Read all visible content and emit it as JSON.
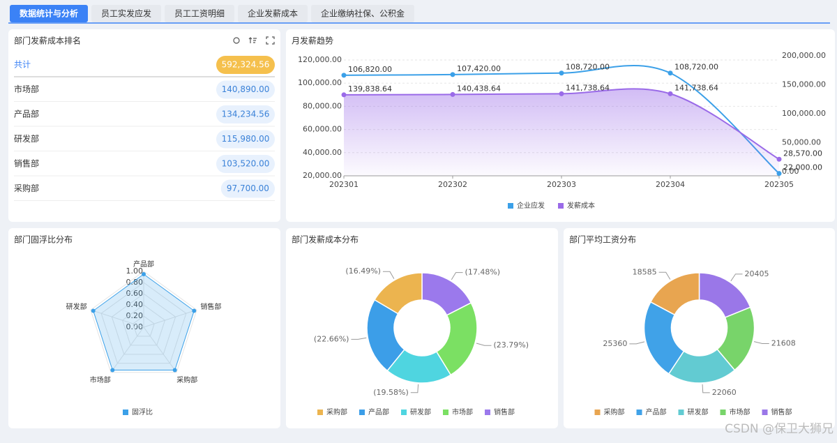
{
  "tabs": [
    "数据统计与分析",
    "员工实发应发",
    "员工工资明细",
    "企业发薪成本",
    "企业缴纳社保、公积金"
  ],
  "active_tab": 0,
  "ranking": {
    "title": "部门发薪成本排名",
    "rows": [
      {
        "name": "共计",
        "value": "592,324.56"
      },
      {
        "name": "市场部",
        "value": "140,890.00"
      },
      {
        "name": "产品部",
        "value": "134,234.56"
      },
      {
        "name": "研发部",
        "value": "115,980.00"
      },
      {
        "name": "销售部",
        "value": "103,520.00"
      },
      {
        "name": "采购部",
        "value": "97,700.00"
      }
    ]
  },
  "watermark": "CSDN @保卫大狮兄",
  "chart_data": [
    {
      "type": "line",
      "title": "月发薪趋势",
      "categories": [
        "202301",
        "202302",
        "202303",
        "202304",
        "202305"
      ],
      "ylim": [
        20000,
        120000
      ],
      "yticks": [
        {
          "value": 20000,
          "label": "20,000.00"
        },
        {
          "value": 40000,
          "label": "40,000.00"
        },
        {
          "value": 60000,
          "label": "60,000.00"
        },
        {
          "value": 80000,
          "label": "80,000.00"
        },
        {
          "value": 100000,
          "label": "100,000.00"
        },
        {
          "value": 120000,
          "label": "120,000.00"
        }
      ],
      "y2lim": [
        0,
        200000
      ],
      "y2ticks": [
        {
          "value": 0,
          "label": "0.00"
        },
        {
          "value": 50000,
          "label": "50,000.00"
        },
        {
          "value": 100000,
          "label": "100,000.00"
        },
        {
          "value": 150000,
          "label": "150,000.00"
        },
        {
          "value": 200000,
          "label": "200,000.00"
        }
      ],
      "grid": true,
      "legend": "bottom",
      "series": [
        {
          "name": "企业应发",
          "color": "#3ba0e8",
          "values": [
            106820,
            107420,
            108720,
            108720,
            22000
          ],
          "value_labels": [
            "106,820.00",
            "107,420.00",
            "108,720.00",
            "108,720.00",
            "22,000.00"
          ]
        },
        {
          "name": "发薪成本",
          "color": "#9a6ae8",
          "axis": "y2",
          "area": true,
          "values": [
            139838.64,
            140438.64,
            141738.64,
            141738.64,
            28570
          ],
          "value_labels": [
            "139,838.64",
            "140,438.64",
            "141,738.64",
            "141,738.64",
            "28,570.00"
          ]
        }
      ]
    },
    {
      "type": "radar",
      "title": "部门固浮比分布",
      "categories": [
        "产品部",
        "销售部",
        "采购部",
        "市场部",
        "研发部"
      ],
      "rlim": [
        0,
        1
      ],
      "rticks": [
        {
          "value": 0,
          "label": "0.00"
        },
        {
          "value": 0.2,
          "label": "0.20"
        },
        {
          "value": 0.4,
          "label": "0.40"
        },
        {
          "value": 0.6,
          "label": "0.60"
        },
        {
          "value": 0.8,
          "label": "0.80"
        },
        {
          "value": 1,
          "label": "1.00"
        }
      ],
      "legend": "bottom",
      "series": [
        {
          "name": "固浮比",
          "color": "#3ba0e8",
          "values": [
            0.95,
            0.95,
            0.95,
            0.95,
            0.95
          ]
        }
      ]
    },
    {
      "type": "pie",
      "title": "部门发薪成本分布",
      "legend": "bottom",
      "categories": [
        "采购部",
        "产品部",
        "研发部",
        "市场部",
        "销售部"
      ],
      "values": [
        16.49,
        22.66,
        19.58,
        23.79,
        17.48
      ],
      "value_labels": [
        "(16.49%)",
        "(22.66%)",
        "(19.58%)",
        "(23.79%)",
        "(17.48%)"
      ],
      "colors": [
        "#ecb44f",
        "#3c9ee8",
        "#4fd5e0",
        "#7be063",
        "#9b79ec"
      ]
    },
    {
      "type": "pie",
      "title": "部门平均工资分布",
      "legend": "bottom",
      "categories": [
        "采购部",
        "产品部",
        "研发部",
        "市场部",
        "销售部"
      ],
      "values": [
        18585,
        25360,
        22060,
        21608,
        20405
      ],
      "colors": [
        "#e8a550",
        "#40a2e8",
        "#62cbd2",
        "#78d46a",
        "#9a77e8"
      ]
    }
  ]
}
